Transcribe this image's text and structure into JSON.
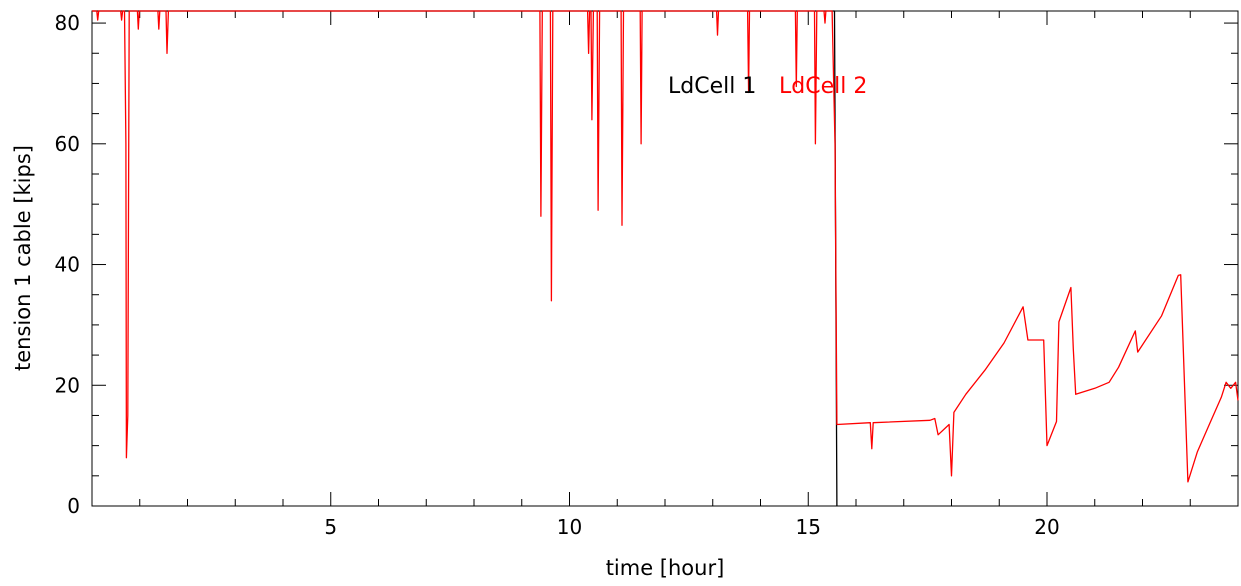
{
  "chart_data": {
    "type": "line",
    "title": "",
    "xlabel": "time [hour]",
    "ylabel": "tension 1 cable [kips]",
    "xlim": [
      0,
      24
    ],
    "ylim": [
      0,
      82
    ],
    "x_ticks": [
      5,
      10,
      15,
      20
    ],
    "y_ticks": [
      0,
      20,
      40,
      60,
      80
    ],
    "grid": false,
    "legend_placement": "top-center",
    "series": [
      {
        "name": "LdCell 1",
        "color": "#000000",
        "points": [
          [
            0,
            82
          ],
          [
            15.55,
            82
          ],
          [
            15.6,
            0
          ]
        ]
      },
      {
        "name": "LdCell 2",
        "color": "#ff0000",
        "points": [
          [
            0,
            82
          ],
          [
            0.1,
            82
          ],
          [
            0.12,
            80.5
          ],
          [
            0.14,
            82
          ],
          [
            0.6,
            82
          ],
          [
            0.62,
            80.5
          ],
          [
            0.64,
            82
          ],
          [
            0.68,
            82
          ],
          [
            0.71,
            60
          ],
          [
            0.72,
            8
          ],
          [
            0.75,
            15
          ],
          [
            0.78,
            82
          ],
          [
            0.95,
            82
          ],
          [
            0.97,
            79
          ],
          [
            0.99,
            82
          ],
          [
            1.38,
            82
          ],
          [
            1.4,
            79
          ],
          [
            1.42,
            82
          ],
          [
            1.55,
            82
          ],
          [
            1.57,
            75
          ],
          [
            1.6,
            82
          ],
          [
            9.38,
            82
          ],
          [
            9.4,
            48
          ],
          [
            9.43,
            82
          ],
          [
            9.6,
            82
          ],
          [
            9.62,
            34
          ],
          [
            9.65,
            82
          ],
          [
            10.38,
            82
          ],
          [
            10.4,
            75
          ],
          [
            10.42,
            82
          ],
          [
            10.45,
            82
          ],
          [
            10.47,
            64
          ],
          [
            10.5,
            82
          ],
          [
            10.58,
            82
          ],
          [
            10.6,
            49
          ],
          [
            10.63,
            82
          ],
          [
            11.08,
            82
          ],
          [
            11.1,
            46.5
          ],
          [
            11.13,
            82
          ],
          [
            11.48,
            82
          ],
          [
            11.5,
            60
          ],
          [
            11.52,
            82
          ],
          [
            13.08,
            82
          ],
          [
            13.1,
            78
          ],
          [
            13.12,
            82
          ],
          [
            13.73,
            82
          ],
          [
            13.75,
            68.5
          ],
          [
            13.77,
            82
          ],
          [
            14.73,
            82
          ],
          [
            14.75,
            69.5
          ],
          [
            14.77,
            82
          ],
          [
            15.13,
            82
          ],
          [
            15.15,
            60
          ],
          [
            15.18,
            82
          ],
          [
            15.33,
            82
          ],
          [
            15.35,
            80
          ],
          [
            15.37,
            82
          ],
          [
            15.5,
            82
          ],
          [
            15.56,
            60
          ],
          [
            15.6,
            13.5
          ],
          [
            16.3,
            13.8
          ],
          [
            16.33,
            9.5
          ],
          [
            16.36,
            13.8
          ],
          [
            17.55,
            14.2
          ],
          [
            17.65,
            14.5
          ],
          [
            17.72,
            11.8
          ],
          [
            17.95,
            13.5
          ],
          [
            18.0,
            5
          ],
          [
            18.05,
            15.5
          ],
          [
            18.3,
            18.5
          ],
          [
            18.7,
            22.5
          ],
          [
            19.1,
            27
          ],
          [
            19.5,
            33
          ],
          [
            19.6,
            27.5
          ],
          [
            19.93,
            27.5
          ],
          [
            20.0,
            10
          ],
          [
            20.2,
            14
          ],
          [
            20.25,
            30.5
          ],
          [
            20.5,
            36.2
          ],
          [
            20.55,
            26
          ],
          [
            20.6,
            18.5
          ],
          [
            21.0,
            19.5
          ],
          [
            21.3,
            20.5
          ],
          [
            21.5,
            23
          ],
          [
            21.85,
            29
          ],
          [
            21.9,
            25.5
          ],
          [
            22.4,
            31.5
          ],
          [
            22.75,
            38.2
          ],
          [
            22.8,
            38.3
          ],
          [
            22.95,
            4
          ],
          [
            23.15,
            9
          ],
          [
            23.4,
            13.5
          ],
          [
            23.65,
            18
          ],
          [
            23.75,
            20.5
          ],
          [
            23.85,
            19.5
          ],
          [
            23.95,
            20.5
          ],
          [
            24.0,
            17.5
          ]
        ]
      }
    ]
  }
}
